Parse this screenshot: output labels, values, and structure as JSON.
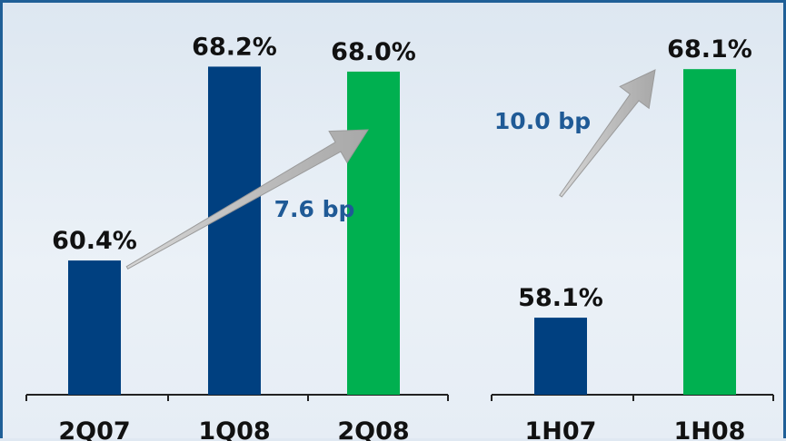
{
  "chart_data": [
    {
      "type": "bar",
      "categories": [
        "2Q07",
        "1Q08",
        "2Q08"
      ],
      "values": [
        60.4,
        68.2,
        68.0
      ],
      "value_labels": [
        "60.4%",
        "68.2%",
        "68.0%"
      ],
      "bar_colors": [
        "#004080",
        "#004080",
        "#00b050"
      ],
      "annotation": "7.6 bp",
      "ylim": [
        55,
        68.8
      ],
      "grid": false
    },
    {
      "type": "bar",
      "categories": [
        "1H07",
        "1H08"
      ],
      "values": [
        58.1,
        68.1
      ],
      "value_labels": [
        "58.1%",
        "68.1%"
      ],
      "bar_colors": [
        "#004080",
        "#00b050"
      ],
      "annotation": "10.0 bp",
      "ylim": [
        55,
        68.8
      ],
      "grid": false
    }
  ],
  "colors": {
    "annotation_text": "#1f5a96",
    "arrow": "#b4b4b4",
    "frame_border": "#1f5f97",
    "background": "#e4ecf4"
  }
}
